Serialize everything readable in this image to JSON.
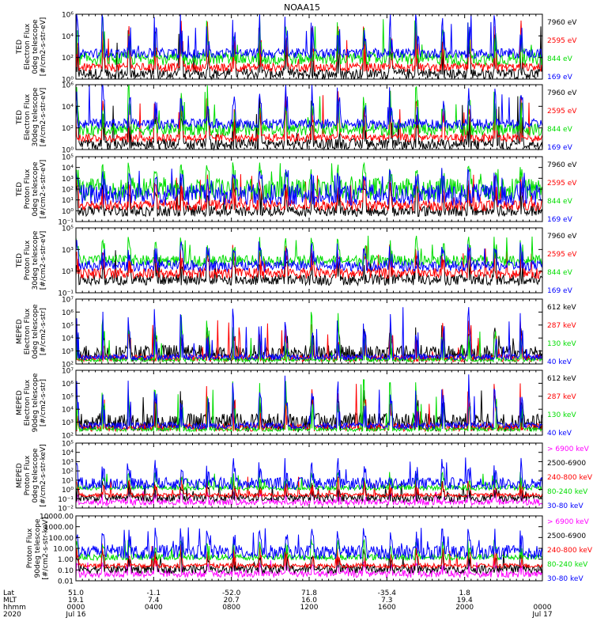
{
  "title": "NOAA15",
  "colors": {
    "black": "#000000",
    "red": "#ff0000",
    "green": "#00dd00",
    "blue": "#0000ff",
    "magenta": "#ff00ff"
  },
  "chart_data": [
    {
      "type": "line",
      "ylabel": [
        "TED",
        "Electron Flux",
        "0deg telescope",
        "[#/cm2-s-str-eV]"
      ],
      "ylog": true,
      "ylim": [
        1,
        1000000
      ],
      "yticks": [
        "10⁰",
        "10²",
        "10⁴",
        "10⁶"
      ],
      "series": [
        {
          "name": "7960 eV",
          "color": "black"
        },
        {
          "name": "2595 eV",
          "color": "red"
        },
        {
          "name": "844 eV",
          "color": "green"
        },
        {
          "name": "169 eV",
          "color": "blue"
        }
      ],
      "ranges": [
        [
          1,
          10
        ],
        [
          5,
          30
        ],
        [
          20,
          300
        ],
        [
          80,
          700
        ]
      ],
      "spike_max": [
        100000,
        300000,
        1000000,
        3000000
      ]
    },
    {
      "type": "line",
      "ylabel": [
        "TED",
        "Electron Flux",
        "30deg telescope",
        "[#/cm2-s-str-eV]"
      ],
      "ylog": true,
      "ylim": [
        1,
        1000000
      ],
      "yticks": [
        "10⁰",
        "10²",
        "10⁴",
        "10⁶"
      ],
      "series": [
        {
          "name": "7960 eV",
          "color": "black"
        },
        {
          "name": "2595 eV",
          "color": "red"
        },
        {
          "name": "844 eV",
          "color": "green"
        },
        {
          "name": "169 eV",
          "color": "blue"
        }
      ],
      "ranges": [
        [
          1,
          10
        ],
        [
          5,
          30
        ],
        [
          20,
          300
        ],
        [
          80,
          700
        ]
      ],
      "spike_max": [
        100000,
        300000,
        1000000,
        3000000
      ]
    },
    {
      "type": "line",
      "ylabel": [
        "TED",
        "Proton Flux",
        "0deg telescope",
        "[#/cm2-s-str-eV]"
      ],
      "ylog": true,
      "ylim": [
        0.1,
        100000
      ],
      "yticks": [
        "10⁻¹",
        "10⁰",
        "10¹",
        "10²",
        "10³",
        "10⁴",
        "10⁵"
      ],
      "series": [
        {
          "name": "7960 eV",
          "color": "black"
        },
        {
          "name": "2595 eV",
          "color": "red"
        },
        {
          "name": "844 eV",
          "color": "green"
        },
        {
          "name": "169 eV",
          "color": "blue"
        }
      ],
      "ranges": [
        [
          0.3,
          3
        ],
        [
          1,
          10
        ],
        [
          10,
          1000
        ],
        [
          3,
          300
        ]
      ],
      "spike_max": [
        1000,
        3000,
        30000,
        10000
      ]
    },
    {
      "type": "line",
      "ylabel": [
        "TED",
        "Proton Flux",
        "30deg telescope",
        "[#/cm2-s-str-eV]"
      ],
      "ylog": true,
      "ylim": [
        0.1,
        100000
      ],
      "yticks": [
        "10⁻¹",
        "10¹",
        "10³",
        "10⁵"
      ],
      "series": [
        {
          "name": "7960 eV",
          "color": "black"
        },
        {
          "name": "2595 eV",
          "color": "red"
        },
        {
          "name": "844 eV",
          "color": "green"
        },
        {
          "name": "169 eV",
          "color": "blue"
        }
      ],
      "ranges": [
        [
          0.5,
          5
        ],
        [
          2,
          20
        ],
        [
          30,
          300
        ],
        [
          10,
          100
        ]
      ],
      "spike_max": [
        1000,
        3000,
        30000,
        10000
      ]
    },
    {
      "type": "line",
      "ylabel": [
        "MEPED",
        "Electron Flux",
        "0deg telescope",
        "[#/cm2-s-str]"
      ],
      "ylog": true,
      "ylim": [
        100,
        10000000
      ],
      "yticks": [
        "10²",
        "10³",
        "10⁴",
        "10⁵",
        "10⁶",
        "10⁷"
      ],
      "series": [
        {
          "name": "612 keV",
          "color": "black"
        },
        {
          "name": "287 keV",
          "color": "red"
        },
        {
          "name": "130 keV",
          "color": "green"
        },
        {
          "name": "40 keV",
          "color": "blue"
        }
      ],
      "ranges": [
        [
          150,
          3000
        ],
        [
          150,
          500
        ],
        [
          150,
          300
        ],
        [
          200,
          600
        ]
      ],
      "spike_max": [
        100000,
        300000,
        1000000,
        3000000
      ]
    },
    {
      "type": "line",
      "ylabel": [
        "MEPED",
        "Electron Flux",
        "90deg telescope",
        "[#/cm2-s-str]"
      ],
      "ylog": true,
      "ylim": [
        100,
        10000000
      ],
      "yticks": [
        "10²",
        "10³",
        "10⁴",
        "10⁵",
        "10⁶",
        "10⁷"
      ],
      "series": [
        {
          "name": "612 keV",
          "color": "black"
        },
        {
          "name": "287 keV",
          "color": "red"
        },
        {
          "name": "130 keV",
          "color": "green"
        },
        {
          "name": "40 keV",
          "color": "blue"
        }
      ],
      "ranges": [
        [
          200,
          5000
        ],
        [
          200,
          800
        ],
        [
          200,
          400
        ],
        [
          300,
          1000
        ]
      ],
      "spike_max": [
        300000,
        1000000,
        2000000,
        5000000
      ]
    },
    {
      "type": "line",
      "ylabel": [
        "MEPED",
        "Proton Flux",
        "0deg telescope",
        "[#/cm2-s-str-keV]"
      ],
      "ylog": true,
      "ylim": [
        0.01,
        100000
      ],
      "yticks": [
        "10⁻²",
        "10⁻¹",
        "10⁰",
        "10¹",
        "10²",
        "10³",
        "10⁴",
        "10⁵"
      ],
      "series": [
        {
          "name": "> 6900 keV",
          "color": "magenta"
        },
        {
          "name": "2500-6900",
          "color": "black"
        },
        {
          "name": "240-800 keV",
          "color": "red"
        },
        {
          "name": "80-240 keV",
          "color": "green"
        },
        {
          "name": "30-80 keV",
          "color": "blue"
        }
      ],
      "ranges": [
        [
          0.02,
          0.1
        ],
        [
          0.05,
          0.3
        ],
        [
          0.15,
          0.4
        ],
        [
          0.8,
          3
        ],
        [
          1,
          20
        ]
      ],
      "spike_max": [
        1,
        10,
        30,
        100,
        3000
      ]
    },
    {
      "type": "line",
      "ylabel": [
        "Proton Flux",
        "90deg telescope",
        "[#/cm2-s-str-keV]"
      ],
      "ylog": true,
      "ylim": [
        0.01,
        10000
      ],
      "yticks": [
        "0.01",
        "0.10",
        "1.00",
        "10.00",
        "100.00",
        "1000.00",
        "10000.00"
      ],
      "series": [
        {
          "name": "> 6900 keV",
          "color": "magenta"
        },
        {
          "name": "2500-6900",
          "color": "black"
        },
        {
          "name": "240-800 keV",
          "color": "red"
        },
        {
          "name": "80-240 keV",
          "color": "green"
        },
        {
          "name": "30-80 keV",
          "color": "blue"
        }
      ],
      "ranges": [
        [
          0.02,
          0.1
        ],
        [
          0.05,
          0.3
        ],
        [
          0.15,
          0.4
        ],
        [
          0.8,
          3
        ],
        [
          1,
          20
        ]
      ],
      "spike_max": [
        1,
        10,
        30,
        100,
        1000
      ]
    }
  ],
  "x_axis": {
    "row_labels": [
      "Lat",
      "MLT",
      "hhmm",
      "2020"
    ],
    "ticks": [
      {
        "lat": "51.0",
        "mlt": "19.1",
        "hhmm": "0000",
        "date": "Jul 16"
      },
      {
        "lat": "-1.1",
        "mlt": "7.4",
        "hhmm": "0400",
        "date": ""
      },
      {
        "lat": "-52.0",
        "mlt": "20.7",
        "hhmm": "0800",
        "date": ""
      },
      {
        "lat": "71.8",
        "mlt": "16.0",
        "hhmm": "1200",
        "date": ""
      },
      {
        "lat": "-35.4",
        "mlt": "7.3",
        "hhmm": "1600",
        "date": ""
      },
      {
        "lat": "1.8",
        "mlt": "19.4",
        "hhmm": "2000",
        "date": ""
      },
      {
        "lat": "",
        "mlt": "",
        "hhmm": "0000",
        "date": "Jul 17"
      }
    ]
  }
}
